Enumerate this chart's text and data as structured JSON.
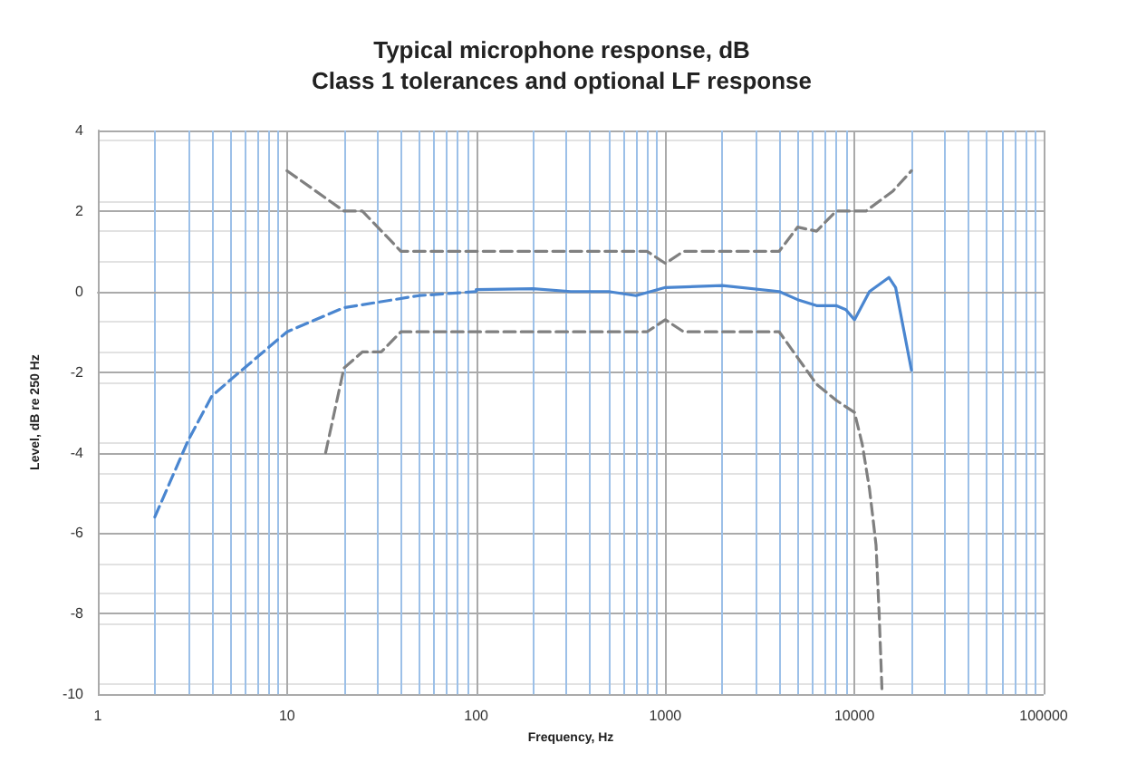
{
  "chart_data": {
    "type": "line",
    "title": "Typical microphone response, dB",
    "subtitle": "Class 1 tolerances and optional LF response",
    "xlabel": "Frequency, Hz",
    "ylabel": "Level, dB re 250 Hz",
    "log": "x",
    "xlim": [
      1,
      100000
    ],
    "xticks": [
      1,
      {
        "value": 2,
        "label": null
      },
      {
        "value": 3,
        "label": null
      },
      {
        "value": 4,
        "label": null
      },
      {
        "value": 5,
        "label": null
      },
      {
        "value": 6,
        "label": null
      },
      {
        "value": 7,
        "label": null
      },
      {
        "value": 8,
        "label": null
      },
      {
        "value": 9,
        "label": null
      },
      10,
      {
        "value": 20,
        "label": null
      },
      {
        "value": 30,
        "label": null
      },
      {
        "value": 40,
        "label": null
      },
      {
        "value": 50,
        "label": null
      },
      {
        "value": 60,
        "label": null
      },
      {
        "value": 70,
        "label": null
      },
      {
        "value": 80,
        "label": null
      },
      {
        "value": 90,
        "label": null
      },
      100,
      {
        "value": 200,
        "label": null
      },
      {
        "value": 300,
        "label": null
      },
      {
        "value": 400,
        "label": null
      },
      {
        "value": 500,
        "label": null
      },
      {
        "value": 600,
        "label": null
      },
      {
        "value": 700,
        "label": null
      },
      {
        "value": 800,
        "label": null
      },
      {
        "value": 900,
        "label": null
      },
      1000,
      {
        "value": 2000,
        "label": null
      },
      {
        "value": 3000,
        "label": null
      },
      {
        "value": 4000,
        "label": null
      },
      {
        "value": 5000,
        "label": null
      },
      {
        "value": 6000,
        "label": null
      },
      {
        "value": 7000,
        "label": null
      },
      {
        "value": 8000,
        "label": null
      },
      {
        "value": 9000,
        "label": null
      },
      10000,
      {
        "value": 20000,
        "label": null
      },
      {
        "value": 30000,
        "label": null
      },
      {
        "value": 40000,
        "label": null
      },
      {
        "value": 50000,
        "label": null
      },
      {
        "value": 60000,
        "label": null
      },
      {
        "value": 70000,
        "label": null
      },
      {
        "value": 80000,
        "label": null
      },
      {
        "value": 90000,
        "label": null
      },
      100000
    ],
    "ylim": [
      -10,
      4
    ],
    "yticks": [
      -10,
      -8,
      -6,
      -4,
      -2,
      0,
      2,
      4
    ],
    "grid": true,
    "marker": "none",
    "series": [
      {
        "color": "#4a86d0",
        "line_style": "dashed",
        "x": [
          2,
          3,
          4,
          5,
          10,
          20,
          50,
          100
        ],
        "values": [
          -5.6,
          -3.7,
          -2.6,
          -2.2,
          -1.0,
          -0.4,
          -0.1,
          0
        ]
      },
      {
        "color": "#4a86d0",
        "line_style": "solid",
        "x": [
          100,
          200,
          316,
          500,
          700,
          1000,
          2000,
          4000,
          5000,
          6300,
          8000,
          9000,
          10000,
          12000,
          15200,
          16500,
          20000
        ],
        "values": [
          0.05,
          0.07,
          0,
          0,
          -0.1,
          0.1,
          0.15,
          0,
          -0.2,
          -0.35,
          -0.35,
          -0.45,
          -0.7,
          0,
          0.35,
          0.1,
          -1.95
        ]
      },
      {
        "color": "#808080",
        "line_style": "dashed",
        "x": [
          10,
          20,
          25,
          40,
          800,
          1000,
          1250,
          4000,
          5000,
          6300,
          8000,
          11500,
          16000,
          20000
        ],
        "values": [
          3.0,
          2.0,
          2.0,
          1.0,
          1.0,
          0.7,
          1.0,
          1.0,
          1.6,
          1.5,
          2.0,
          2.0,
          2.5,
          3.0
        ]
      },
      {
        "color": "#808080",
        "line_style": "dashed",
        "x": [
          16,
          20,
          25,
          31.5,
          40,
          800,
          1000,
          1250,
          4000,
          6300,
          8000,
          10000,
          11000,
          12000,
          12500,
          13000,
          13500,
          14000
        ],
        "values": [
          -4.0,
          -1.9,
          -1.5,
          -1.5,
          -1.0,
          -1.0,
          -0.7,
          -1.0,
          -1.0,
          -2.3,
          -2.7,
          -3.0,
          -3.8,
          -4.9,
          -5.6,
          -6.3,
          -8.0,
          -10.0
        ]
      }
    ]
  }
}
